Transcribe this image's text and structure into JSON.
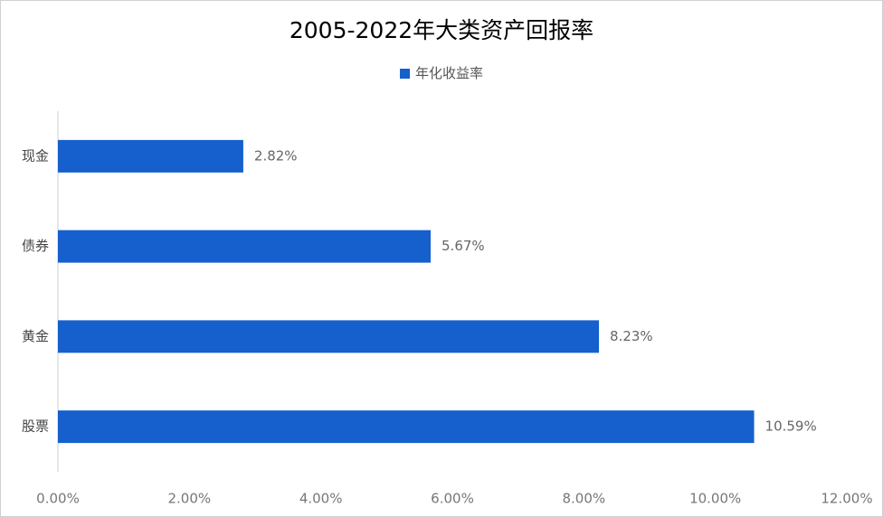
{
  "chart_data": {
    "type": "bar",
    "orientation": "horizontal",
    "title": "2005-2022年大类资产回报率",
    "categories": [
      "现金",
      "债券",
      "黄金",
      "股票"
    ],
    "series": [
      {
        "name": "年化收益率",
        "values": [
          2.82,
          5.67,
          8.23,
          10.59
        ],
        "value_labels": [
          "2.82%",
          "5.67%",
          "8.23%",
          "10.59%"
        ],
        "color": "#1560cc"
      }
    ],
    "xlim": [
      0,
      12
    ],
    "x_ticks": [
      0,
      2,
      4,
      6,
      8,
      10,
      12
    ],
    "x_tick_labels": [
      "0.00%",
      "2.00%",
      "4.00%",
      "6.00%",
      "8.00%",
      "10.00%",
      "12.00%"
    ],
    "xlabel": "",
    "ylabel": "",
    "grid": false,
    "legend_position": "top"
  }
}
